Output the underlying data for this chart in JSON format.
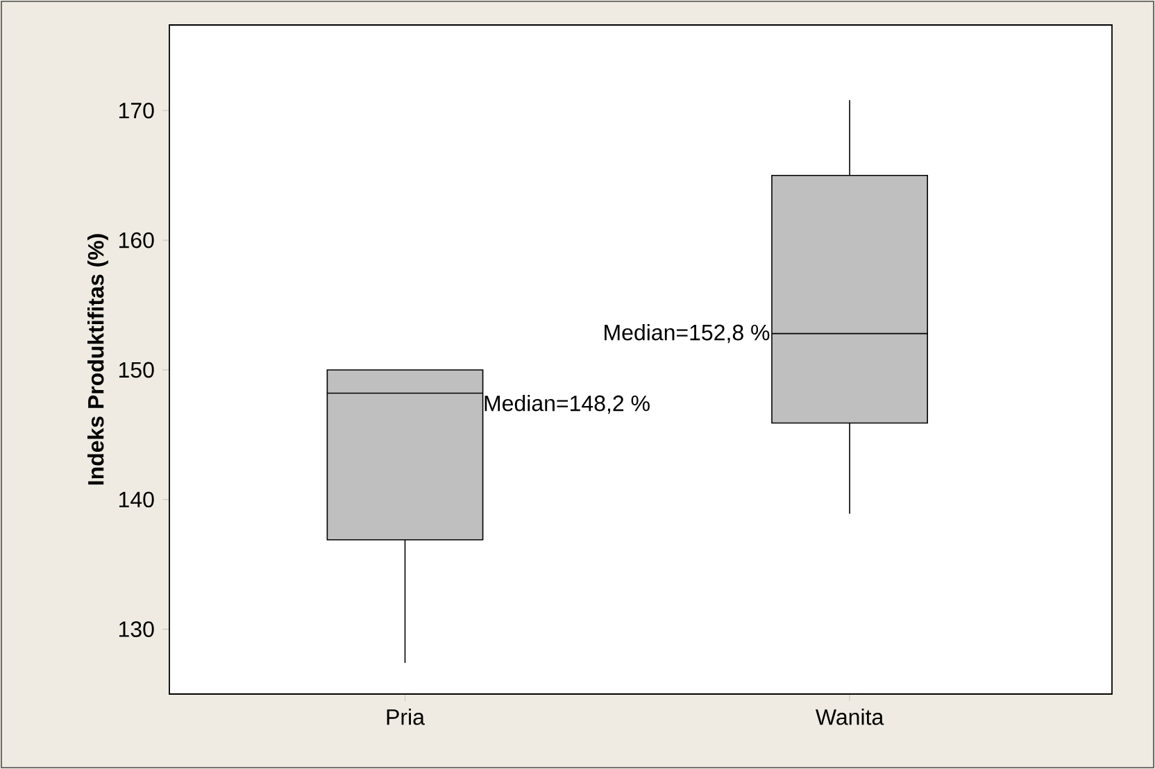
{
  "chart_data": {
    "type": "box",
    "ylabel": "Indeks Produktifitas (%)",
    "categories": [
      "Pria",
      "Wanita"
    ],
    "color": "#bfbfbf",
    "boxes": [
      {
        "low": 127.4,
        "q1": 136.9,
        "median": 148.2,
        "q3": 150.0,
        "high": 150.0
      },
      {
        "low": 138.9,
        "q1": 145.9,
        "median": 152.8,
        "q3": 165.0,
        "high": 170.8
      }
    ],
    "ylim": [
      125,
      176.6
    ],
    "yticks": [
      130,
      140,
      150,
      160,
      170
    ],
    "annotations": [
      "Median=148,2 %",
      "Median=152,8 %"
    ]
  }
}
